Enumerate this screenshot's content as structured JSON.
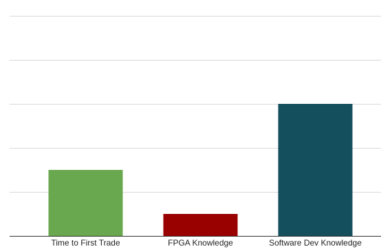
{
  "chart_data": {
    "type": "bar",
    "categories": [
      "Time to First Trade",
      "FPGA Knowledge",
      "Software Dev Knowledge"
    ],
    "values": [
      1.5,
      0.5,
      3
    ],
    "colors": [
      "#6aa84f",
      "#990000",
      "#134f5c"
    ],
    "ylim": [
      0,
      5
    ],
    "grid": true,
    "gridline_values": [
      1,
      2,
      3,
      4,
      5
    ],
    "title": "",
    "xlabel": "",
    "ylabel": ""
  }
}
